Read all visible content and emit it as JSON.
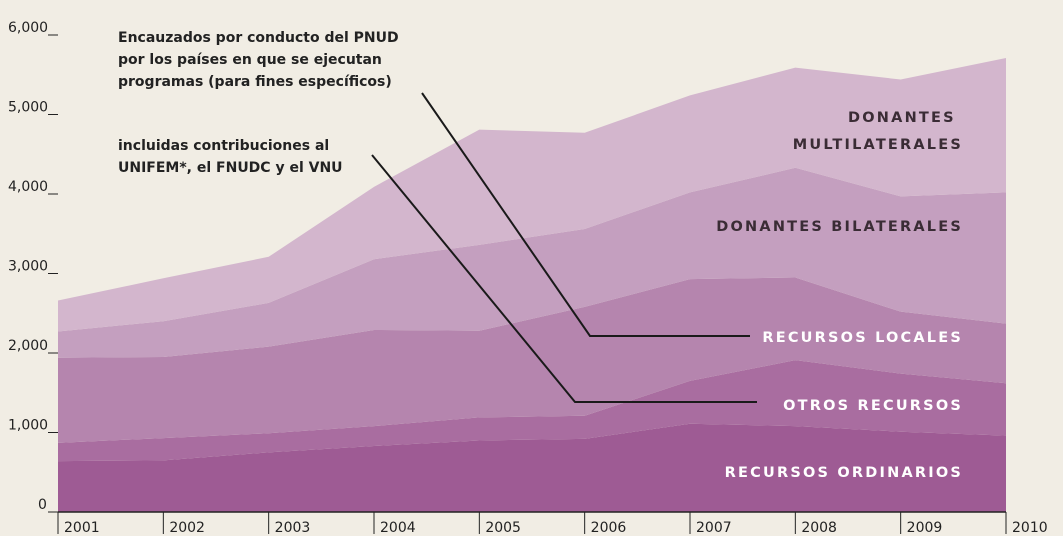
{
  "chart_data": {
    "type": "stacked_area",
    "categories": [
      "2001",
      "2002",
      "2003",
      "2004",
      "2005",
      "2006",
      "2007",
      "2008",
      "2009",
      "2010"
    ],
    "series": [
      {
        "name": "RECURSOS ORDINARIOS",
        "color": "#9e5b94",
        "values": [
          640,
          650,
          750,
          830,
          900,
          920,
          1110,
          1080,
          1010,
          960
        ]
      },
      {
        "name": "OTROS RECURSOS",
        "color": "#a96da0",
        "values": [
          230,
          280,
          240,
          250,
          290,
          290,
          540,
          830,
          730,
          660
        ]
      },
      {
        "name": "RECURSOS LOCALES",
        "color": "#b585ae",
        "values": [
          1070,
          1020,
          1090,
          1210,
          1090,
          1370,
          1280,
          1040,
          780,
          750
        ]
      },
      {
        "name": "DONANTES BILATERALES",
        "color": "#c49fbf",
        "values": [
          330,
          450,
          550,
          890,
          1080,
          980,
          1090,
          1380,
          1450,
          1650
        ]
      },
      {
        "name": "DONANTES MULTILATERALES",
        "color": "#d3b6cd",
        "values": [
          390,
          540,
          580,
          910,
          1450,
          1210,
          1220,
          1260,
          1470,
          1690
        ]
      }
    ],
    "ylim": [
      0,
      6000
    ],
    "yticks": [
      0,
      {
        "value": 1000,
        "label": "1,000"
      },
      {
        "value": 2000,
        "label": "2,000"
      },
      {
        "value": 3000,
        "label": "3,000"
      },
      {
        "value": 4000,
        "label": "4,000"
      },
      {
        "value": 5000,
        "label": "5,000"
      },
      {
        "value": 6000,
        "label": "6,000"
      }
    ],
    "annotations": [
      {
        "lines": [
          "Encauzados por conducto del PNUD",
          "por los países en que se ejecutan",
          "programas (para fines específicos)"
        ]
      },
      {
        "lines": [
          "incluidas contribuciones al",
          "UNIFEM*, el FNUDC y el VNU"
        ]
      }
    ]
  }
}
